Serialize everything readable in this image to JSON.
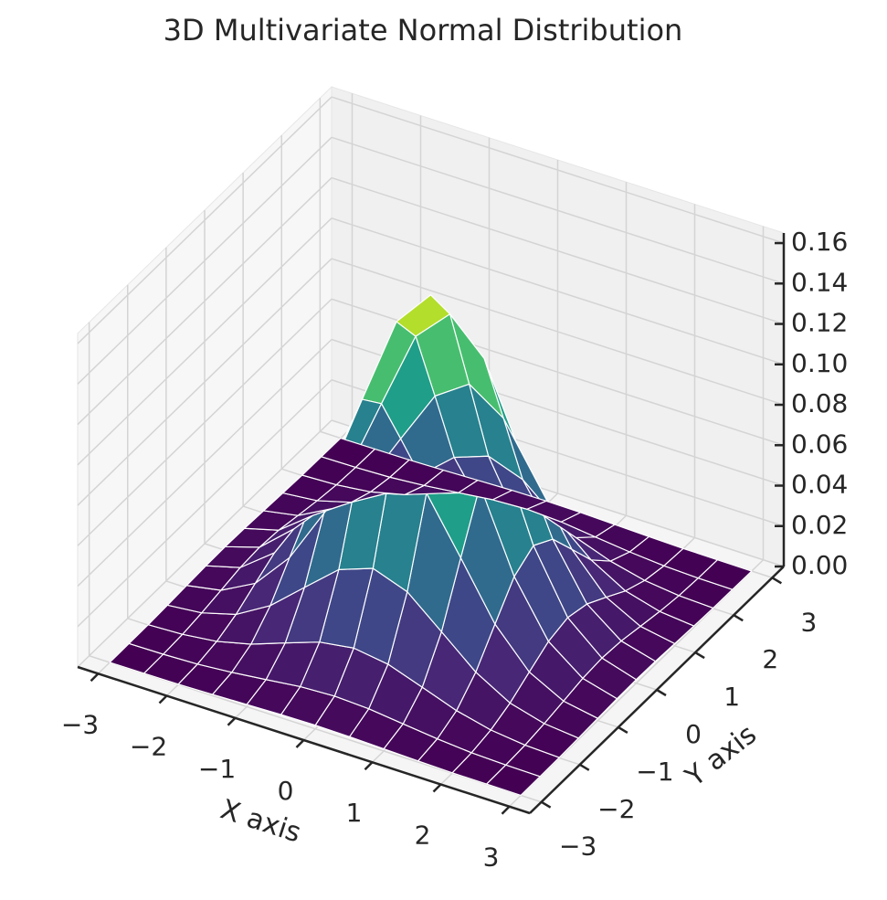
{
  "chart_data": {
    "type": "surface3d",
    "title": "3D Multivariate Normal Distribution",
    "x_label": "X axis",
    "y_label": "Y axis",
    "x": [
      -3,
      -2.5,
      -2,
      -1.5,
      -1,
      -0.5,
      0,
      0.5,
      1,
      1.5,
      2,
      2.5,
      3
    ],
    "y": [
      -3,
      -2.5,
      -2,
      -1.5,
      -1,
      -0.5,
      0,
      0.5,
      1,
      1.5,
      2,
      2.5,
      3
    ],
    "z": [
      [
        0.0,
        0.0001,
        0.0002,
        0.0006,
        0.0011,
        0.0016,
        0.0018,
        0.0016,
        0.0011,
        0.0006,
        0.0002,
        0.0001,
        0.0
      ],
      [
        0.0001,
        0.0003,
        0.0009,
        0.0023,
        0.0042,
        0.0062,
        0.007,
        0.0062,
        0.0042,
        0.0023,
        0.0009,
        0.0003,
        0.0001
      ],
      [
        0.0002,
        0.0009,
        0.0029,
        0.007,
        0.0131,
        0.019,
        0.0215,
        0.019,
        0.0131,
        0.007,
        0.0029,
        0.0009,
        0.0002
      ],
      [
        0.0006,
        0.0023,
        0.007,
        0.0168,
        0.0313,
        0.0456,
        0.0517,
        0.0456,
        0.0313,
        0.0168,
        0.007,
        0.0023,
        0.0006
      ],
      [
        0.0011,
        0.0042,
        0.0131,
        0.0313,
        0.0586,
        0.0852,
        0.0966,
        0.0852,
        0.0586,
        0.0313,
        0.0131,
        0.0042,
        0.0011
      ],
      [
        0.0016,
        0.0062,
        0.019,
        0.0456,
        0.0852,
        0.124,
        0.1405,
        0.124,
        0.0852,
        0.0456,
        0.019,
        0.0062,
        0.0016
      ],
      [
        0.0018,
        0.007,
        0.0215,
        0.0517,
        0.0966,
        0.1405,
        0.1592,
        0.1405,
        0.0966,
        0.0517,
        0.0215,
        0.007,
        0.0018
      ],
      [
        0.0016,
        0.0062,
        0.019,
        0.0456,
        0.0852,
        0.124,
        0.1405,
        0.124,
        0.0852,
        0.0456,
        0.019,
        0.0062,
        0.0016
      ],
      [
        0.0011,
        0.0042,
        0.0131,
        0.0313,
        0.0586,
        0.0852,
        0.0966,
        0.0852,
        0.0586,
        0.0313,
        0.0131,
        0.0042,
        0.0011
      ],
      [
        0.0006,
        0.0023,
        0.007,
        0.0168,
        0.0313,
        0.0456,
        0.0517,
        0.0456,
        0.0313,
        0.0168,
        0.007,
        0.0023,
        0.0006
      ],
      [
        0.0002,
        0.0009,
        0.0029,
        0.007,
        0.0131,
        0.019,
        0.0215,
        0.019,
        0.0131,
        0.007,
        0.0029,
        0.0009,
        0.0002
      ],
      [
        0.0001,
        0.0003,
        0.0009,
        0.0023,
        0.0042,
        0.0062,
        0.007,
        0.0062,
        0.0042,
        0.0023,
        0.0009,
        0.0003,
        0.0001
      ],
      [
        0.0,
        0.0001,
        0.0002,
        0.0006,
        0.0011,
        0.0016,
        0.0018,
        0.0016,
        0.0011,
        0.0006,
        0.0002,
        0.0001,
        0.0
      ]
    ],
    "colormap": [
      "#440154",
      "#482878",
      "#3e4989",
      "#31688e",
      "#26828e",
      "#1f9e89",
      "#35b779",
      "#6ece58",
      "#b5de2b",
      "#fde725"
    ],
    "edge_color": "#ffffff",
    "xlim": [
      -3.3,
      3.3
    ],
    "ylim": [
      -3.3,
      3.3
    ],
    "zlim": [
      0,
      0.165
    ],
    "xticks": [
      {
        "value": -3,
        "label": "−3"
      },
      {
        "value": -2,
        "label": "−2"
      },
      {
        "value": -1,
        "label": "−1"
      },
      0,
      1,
      2,
      3
    ],
    "yticks": [
      {
        "value": -3,
        "label": "−3"
      },
      {
        "value": -2,
        "label": "−2"
      },
      {
        "value": -1,
        "label": "−1"
      },
      0,
      1,
      2,
      3
    ],
    "zticks": [
      {
        "value": 0,
        "label": "0.00"
      },
      {
        "value": 0.02,
        "label": "0.02"
      },
      {
        "value": 0.04,
        "label": "0.04"
      },
      {
        "value": 0.06,
        "label": "0.06"
      },
      {
        "value": 0.08,
        "label": "0.08"
      },
      {
        "value": 0.1,
        "label": "0.10"
      },
      {
        "value": 0.12,
        "label": "0.12"
      },
      {
        "value": 0.14,
        "label": "0.14"
      },
      {
        "value": 0.16,
        "label": "0.16"
      }
    ],
    "grid": true
  }
}
